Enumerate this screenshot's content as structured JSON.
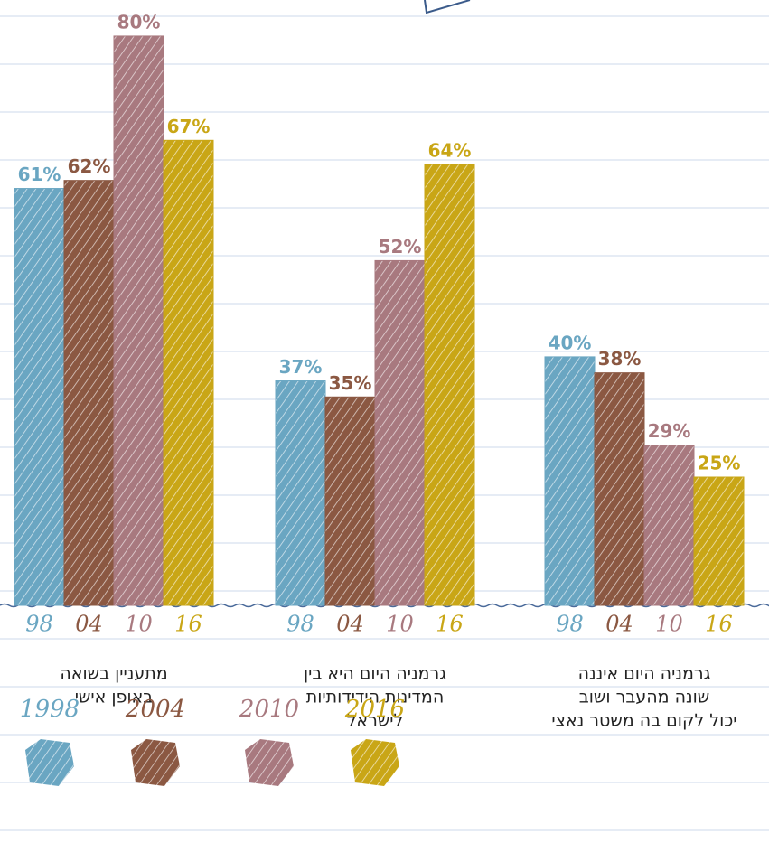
{
  "chart_data": {
    "type": "bar",
    "categories": [
      [
        "מתעניין בשואה",
        "באופן אישי"
      ],
      [
        "גרמניה היום היא בין",
        "המדינות הידידותיות",
        "לישראל"
      ],
      [
        "גרמניה היום איננה",
        "שונה מהעבר ושוב",
        "יכול לקום בה משטר נאצי"
      ]
    ],
    "bar_tick_labels": [
      "98",
      "04",
      "10",
      "16"
    ],
    "series": [
      {
        "name": "1998",
        "color": "#6aa6c2",
        "values": [
          61,
          37,
          40
        ],
        "value_labels": [
          "61%",
          "37%",
          "40%"
        ]
      },
      {
        "name": "2004",
        "color": "#8b5842",
        "values": [
          62,
          35,
          38
        ],
        "value_labels": [
          "62%",
          "35%",
          "38%"
        ]
      },
      {
        "name": "2010",
        "color": "#a8797f",
        "values": [
          80,
          52,
          29
        ],
        "value_labels": [
          "80%",
          "52%",
          "29%"
        ]
      },
      {
        "name": "2016",
        "color": "#c9a616",
        "values": [
          67,
          64,
          25
        ],
        "value_labels": [
          "67%",
          "64%",
          "25%"
        ]
      }
    ],
    "ylim": [
      9,
      84.5
    ]
  }
}
